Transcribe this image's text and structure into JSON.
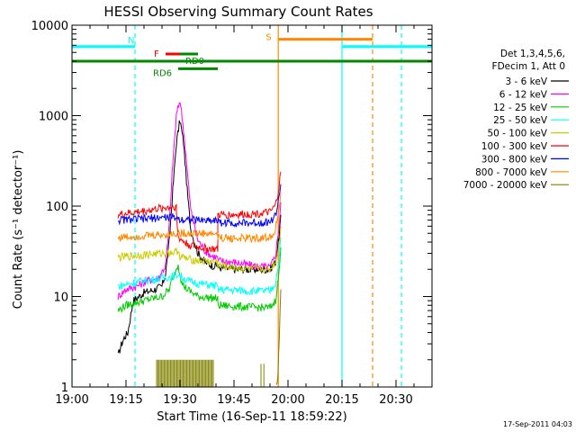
{
  "chart_data": {
    "type": "line",
    "title": "HESSI Observing Summary Count Rates",
    "xlabel": "Start Time (16-Sep-11 18:59:22)",
    "ylabel": "Count Rate (s⁻¹ detector⁻¹)",
    "footer": "17-Sep-2011 04:03",
    "x_unit": "minutes after 19:00",
    "xlim": [
      0,
      100
    ],
    "ylim": [
      1,
      10000
    ],
    "y_scale": "log",
    "x_ticks": [
      {
        "t": 0,
        "label": "19:00"
      },
      {
        "t": 15,
        "label": "19:15"
      },
      {
        "t": 30,
        "label": "19:30"
      },
      {
        "t": 45,
        "label": "19:45"
      },
      {
        "t": 60,
        "label": "20:00"
      },
      {
        "t": 75,
        "label": "20:15"
      },
      {
        "t": 90,
        "label": "20:30"
      }
    ],
    "y_ticks": [
      {
        "v": 1,
        "label": "1"
      },
      {
        "v": 10,
        "label": "10"
      },
      {
        "v": 100,
        "label": "100"
      },
      {
        "v": 1000,
        "label": "1000"
      },
      {
        "v": 10000,
        "label": "10000"
      }
    ],
    "legend": {
      "header": [
        "Det 1,3,4,5,6,",
        "FDecim 1, Att 0"
      ],
      "placement": "right"
    },
    "series": [
      {
        "name": "3 - 6 keV",
        "color": "#000000",
        "points": [
          [
            12.8,
            2.2
          ],
          [
            13.5,
            2.8
          ],
          [
            14.5,
            3.5
          ],
          [
            15.5,
            4
          ],
          [
            17,
            9
          ],
          [
            20,
            11
          ],
          [
            23,
            12
          ],
          [
            25,
            13
          ],
          [
            26,
            18
          ],
          [
            27,
            40
          ],
          [
            28,
            150
          ],
          [
            29,
            500
          ],
          [
            30,
            900
          ],
          [
            31,
            500
          ],
          [
            32,
            150
          ],
          [
            33,
            55
          ],
          [
            35,
            30
          ],
          [
            37,
            24
          ],
          [
            39,
            22
          ],
          [
            40.5,
            22
          ],
          [
            40.5,
            21
          ],
          [
            45,
            20
          ],
          [
            50,
            20
          ],
          [
            55,
            20
          ],
          [
            56.5,
            24
          ],
          [
            57.5,
            45
          ],
          [
            58,
            80
          ]
        ]
      },
      {
        "name": "6 - 12 keV",
        "color": "#ff00ff",
        "points": [
          [
            12.8,
            10
          ],
          [
            15,
            12
          ],
          [
            18,
            13
          ],
          [
            21,
            15
          ],
          [
            24,
            16
          ],
          [
            26,
            22
          ],
          [
            27,
            60
          ],
          [
            28,
            300
          ],
          [
            29,
            1000
          ],
          [
            30,
            1500
          ],
          [
            31,
            700
          ],
          [
            32,
            250
          ],
          [
            33,
            90
          ],
          [
            35,
            42
          ],
          [
            37,
            32
          ],
          [
            39,
            28
          ],
          [
            40.5,
            27
          ],
          [
            40.5,
            25
          ],
          [
            45,
            24
          ],
          [
            50,
            22
          ],
          [
            55,
            21
          ],
          [
            56.5,
            28
          ],
          [
            57.5,
            60
          ],
          [
            58,
            110
          ]
        ]
      },
      {
        "name": "12 - 25 keV",
        "color": "#00cc00",
        "points": [
          [
            12.8,
            7
          ],
          [
            15,
            8
          ],
          [
            20,
            9
          ],
          [
            25,
            10
          ],
          [
            27,
            12
          ],
          [
            28.5,
            18
          ],
          [
            29.5,
            23
          ],
          [
            30.5,
            14
          ],
          [
            32,
            12
          ],
          [
            35,
            10
          ],
          [
            40.5,
            9.5
          ],
          [
            40.5,
            8
          ],
          [
            45,
            7.8
          ],
          [
            50,
            7.6
          ],
          [
            55,
            7.5
          ],
          [
            56.5,
            9
          ],
          [
            57.5,
            18
          ],
          [
            58,
            35
          ]
        ]
      },
      {
        "name": "25 - 50 keV",
        "color": "#00ffff",
        "points": [
          [
            12.8,
            13
          ],
          [
            20,
            15
          ],
          [
            25,
            16
          ],
          [
            29,
            17
          ],
          [
            29.5,
            18
          ],
          [
            30,
            17
          ],
          [
            32,
            15
          ],
          [
            35,
            14
          ],
          [
            40.5,
            13
          ],
          [
            40.5,
            12
          ],
          [
            45,
            11.8
          ],
          [
            50,
            11.5
          ],
          [
            55,
            11.5
          ],
          [
            56.5,
            14
          ],
          [
            57.5,
            25
          ],
          [
            58,
            45
          ]
        ]
      },
      {
        "name": "50 - 100 keV",
        "color": "#cccc00",
        "points": [
          [
            12.8,
            27
          ],
          [
            20,
            29
          ],
          [
            25,
            30
          ],
          [
            29,
            31
          ],
          [
            29.5,
            33
          ],
          [
            30,
            28
          ],
          [
            32,
            26
          ],
          [
            35,
            25
          ],
          [
            40.5,
            24
          ],
          [
            40.5,
            22
          ],
          [
            45,
            21
          ],
          [
            50,
            20
          ],
          [
            55,
            20
          ],
          [
            56.5,
            24
          ],
          [
            57.5,
            38
          ],
          [
            58,
            60
          ]
        ]
      },
      {
        "name": "100 - 300 keV",
        "color": "#ff0000",
        "points": [
          [
            12.8,
            80
          ],
          [
            20,
            88
          ],
          [
            25,
            95
          ],
          [
            29,
            100
          ],
          [
            29,
            80
          ],
          [
            29.5,
            45
          ],
          [
            32,
            38
          ],
          [
            35,
            35
          ],
          [
            40.5,
            33
          ],
          [
            40.5,
            80
          ],
          [
            45,
            80
          ],
          [
            50,
            82
          ],
          [
            55,
            85
          ],
          [
            56.5,
            100
          ],
          [
            57.5,
            160
          ],
          [
            58,
            240
          ]
        ]
      },
      {
        "name": "300 - 800 keV",
        "color": "#0000ff",
        "points": [
          [
            12.8,
            70
          ],
          [
            20,
            72
          ],
          [
            25,
            75
          ],
          [
            29,
            75
          ],
          [
            29.5,
            72
          ],
          [
            35,
            70
          ],
          [
            40.5,
            70
          ],
          [
            40.5,
            66
          ],
          [
            45,
            65
          ],
          [
            50,
            65
          ],
          [
            55,
            67
          ],
          [
            56.5,
            78
          ],
          [
            57.5,
            120
          ],
          [
            58,
            175
          ]
        ]
      },
      {
        "name": "800 - 7000 keV",
        "color": "#ff8800",
        "points": [
          [
            12.8,
            45
          ],
          [
            20,
            47
          ],
          [
            25,
            48
          ],
          [
            29,
            50
          ],
          [
            35,
            50
          ],
          [
            40.5,
            49
          ],
          [
            40.5,
            45
          ],
          [
            45,
            44
          ],
          [
            50,
            44
          ],
          [
            55,
            45
          ],
          [
            56.5,
            55
          ],
          [
            57.5,
            90
          ],
          [
            58,
            140
          ]
        ]
      },
      {
        "name": "7000 - 20000 keV",
        "color": "#808000",
        "points": [
          [
            56.8,
            1.0
          ],
          [
            57.2,
            1.4
          ],
          [
            57.6,
            3.5
          ],
          [
            58,
            12
          ]
        ]
      }
    ],
    "flags": [
      {
        "label": "N",
        "color": "#00ffff",
        "level": 5800,
        "segments": [
          [
            0,
            17.5
          ],
          [
            75,
            100
          ]
        ]
      },
      {
        "label": "S",
        "color": "#ff8800",
        "level": 7000,
        "segments": [
          [
            57.3,
            83.5
          ]
        ]
      },
      {
        "label": "F",
        "color": "#ff0000",
        "level": 4800,
        "segments": [
          [
            26,
            35
          ]
        ]
      },
      {
        "label": "RD0",
        "color": "#008800",
        "level": 4800,
        "segments": [
          [
            30,
            35
          ]
        ]
      },
      {
        "label": "RD6",
        "color": "#008800",
        "level": 3300,
        "segments": [
          [
            29.5,
            40.5
          ]
        ]
      },
      {
        "label": "",
        "color": "#008800",
        "level": 4000,
        "segments": [
          [
            0,
            100
          ]
        ]
      }
    ],
    "vlines": [
      {
        "t": 0,
        "color": "#00ffff",
        "dashed": false
      },
      {
        "t": 17.5,
        "color": "#00ffff",
        "dashed": true
      },
      {
        "t": 75,
        "color": "#00ffff",
        "dashed": false
      },
      {
        "t": 83.5,
        "color": "#ff8800",
        "dashed": true
      },
      {
        "t": 91.5,
        "color": "#00ffff",
        "dashed": true
      },
      {
        "t": 57.3,
        "color": "#ff8800",
        "dashed": false
      }
    ],
    "spikes": {
      "color": "#808000",
      "range": [
        23.5,
        39.5
      ],
      "top": 2.0,
      "extra": [
        [
          52.5,
          1.8
        ],
        [
          53.3,
          1.8
        ]
      ]
    }
  }
}
